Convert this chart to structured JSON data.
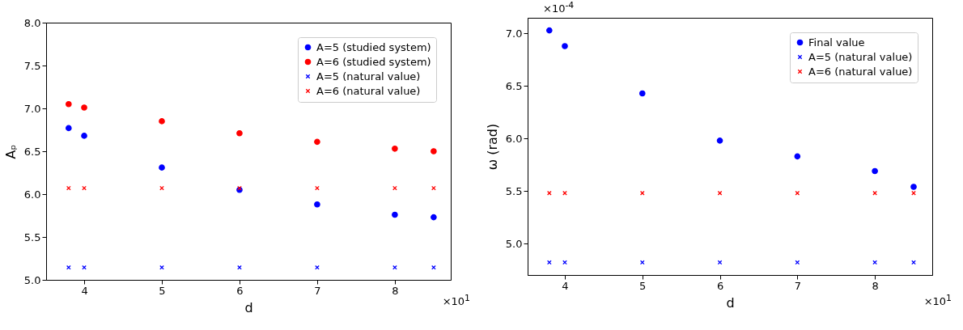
{
  "chart_data": [
    {
      "type": "scatter",
      "xlabel": "d",
      "ylabel": "Aₚ",
      "x": [
        3.8,
        4,
        5,
        6,
        7,
        8,
        8.5
      ],
      "xlim": [
        3.51,
        8.72
      ],
      "xticks": [
        4,
        5,
        6,
        7,
        8
      ],
      "ylim": [
        5.0,
        8.0
      ],
      "yticks": [
        {
          "value": 5,
          "label": "5.0"
        },
        5.5,
        {
          "value": 6,
          "label": "6.0"
        },
        6.5,
        {
          "value": 7,
          "label": "7.0"
        },
        7.5,
        {
          "value": 8,
          "label": "8.0"
        }
      ],
      "legend": "top right",
      "grid": false,
      "series": [
        {
          "name": "A=5 (studied system)",
          "color": "#0000ff",
          "marker": "circle",
          "values": [
            6.77,
            6.68,
            6.31,
            6.05,
            5.88,
            5.76,
            5.73
          ]
        },
        {
          "name": "A=6 (studied system)",
          "color": "#ff0000",
          "marker": "circle",
          "values": [
            7.05,
            7.01,
            6.85,
            6.71,
            6.61,
            6.53,
            6.5
          ]
        },
        {
          "name": "A=5 (natural value)",
          "color": "#0000ff",
          "marker": "cross",
          "values": [
            5.145,
            5.145,
            5.145,
            5.145,
            5.145,
            5.145,
            5.145
          ]
        },
        {
          "name": "A=6 (natural value)",
          "color": "#ff0000",
          "marker": "cross",
          "values": [
            6.07,
            6.07,
            6.07,
            6.07,
            6.07,
            6.07,
            6.07
          ]
        }
      ],
      "annotations": [
        "×10$^{1}$"
      ]
    },
    {
      "type": "scatter",
      "xlabel": "d",
      "ylabel": "ω (rad)",
      "x": [
        3.8,
        4,
        5,
        6,
        7,
        8,
        8.5
      ],
      "xlim": [
        3.52,
        8.74
      ],
      "xticks": [
        4,
        5,
        6,
        7,
        8
      ],
      "ylim": [
        4.7,
        7.15
      ],
      "yticks": [
        {
          "value": 5,
          "label": "5.0"
        },
        5.5,
        {
          "value": 6,
          "label": "6.0"
        },
        6.5,
        {
          "value": 7,
          "label": "7.0"
        }
      ],
      "legend": "top right",
      "grid": false,
      "series": [
        {
          "name": "Final value",
          "color": "#0000ff",
          "marker": "circle",
          "values": [
            7.03,
            6.88,
            6.43,
            5.98,
            5.83,
            5.69,
            5.54
          ]
        },
        {
          "name": "A=5 (natural value)",
          "color": "#0000ff",
          "marker": "cross",
          "values": [
            4.82,
            4.82,
            4.82,
            4.82,
            4.82,
            4.82,
            4.82
          ]
        },
        {
          "name": "A=6 (natural value)",
          "color": "#ff0000",
          "marker": "cross",
          "values": [
            5.48,
            5.48,
            5.48,
            5.48,
            5.48,
            5.48,
            5.48
          ]
        }
      ],
      "annotations": [
        "×10$^{-4}$",
        "×10$^{1}$"
      ]
    }
  ]
}
